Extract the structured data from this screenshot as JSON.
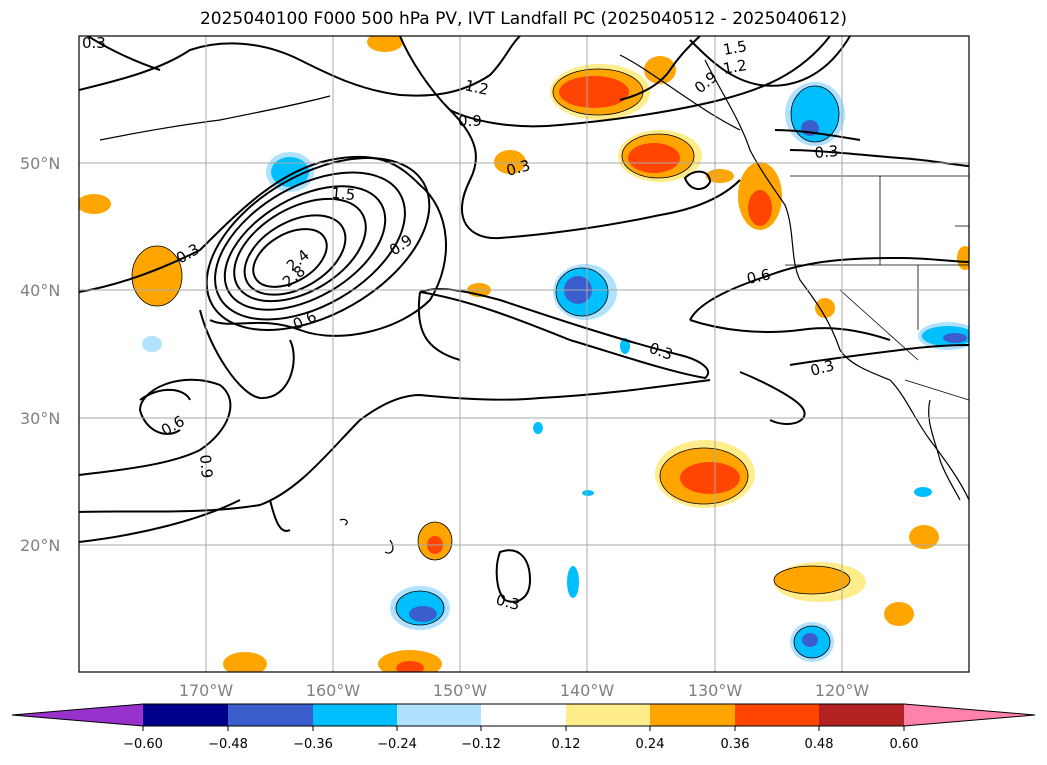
{
  "title": "2025040100 F000 500 hPa PV, IVT Landfall PC (2025040512 - 2025040612)",
  "lat_labels": [
    "50°N",
    "40°N",
    "30°N",
    "20°N"
  ],
  "lon_labels": [
    "170°W",
    "160°W",
    "150°W",
    "140°W",
    "130°W",
    "120°W"
  ],
  "contour_labels": [
    "0.3",
    "1.2",
    "0.9",
    "1.5",
    "1.2",
    "0.9",
    "0.3",
    "0.3",
    "1.5",
    "0.9",
    "2.4",
    "2.8",
    "0.6",
    "0.6",
    "0.3",
    "0.3",
    "0.6",
    "0.9",
    "0.3"
  ],
  "colorbar": {
    "ticks": [
      "−0.60",
      "−0.48",
      "−0.36",
      "−0.24",
      "−0.12",
      "0.12",
      "0.24",
      "0.36",
      "0.48",
      "0.60"
    ],
    "colors": [
      "#9932cc",
      "#00008b",
      "#3a5fcd",
      "#00bfff",
      "#b0e2ff",
      "#ffffff",
      "#ffec8b",
      "#ffa500",
      "#ff4500",
      "#b22222",
      "#ff82ab"
    ]
  },
  "anomaly_colors": {
    "orange": "#ffa500",
    "red": "#ff4500",
    "yellow": "#ffec8b",
    "cyan": "#00bfff",
    "light_blue": "#b0e2ff",
    "blue": "#3a5fcd"
  }
}
